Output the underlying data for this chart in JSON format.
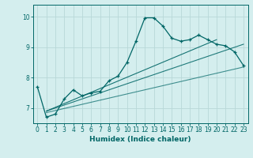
{
  "xlabel": "Humidex (Indice chaleur)",
  "bg_color": "#d4eeee",
  "grid_color": "#c0dede",
  "line_color": "#006666",
  "xlim": [
    -0.5,
    23.5
  ],
  "ylim": [
    6.5,
    10.4
  ],
  "yticks": [
    7,
    8,
    9,
    10
  ],
  "xticks": [
    0,
    1,
    2,
    3,
    4,
    5,
    6,
    7,
    8,
    9,
    10,
    11,
    12,
    13,
    14,
    15,
    16,
    17,
    18,
    19,
    20,
    21,
    22,
    23
  ],
  "main_x": [
    0,
    1,
    2,
    3,
    4,
    5,
    6,
    7,
    8,
    9,
    10,
    11,
    12,
    13,
    14,
    15,
    16,
    17,
    18,
    19,
    20,
    21,
    22,
    23
  ],
  "main_y": [
    7.7,
    6.7,
    6.8,
    7.3,
    7.6,
    7.4,
    7.5,
    7.55,
    7.9,
    8.05,
    8.5,
    9.2,
    9.97,
    9.97,
    9.7,
    9.3,
    9.2,
    9.25,
    9.4,
    9.25,
    9.1,
    9.05,
    8.85,
    8.4
  ],
  "trend1_x": [
    1,
    23
  ],
  "trend1_y": [
    6.9,
    9.1
  ],
  "trend2_x": [
    1,
    23
  ],
  "trend2_y": [
    6.85,
    8.35
  ],
  "trend3_x": [
    1,
    20
  ],
  "trend3_y": [
    6.9,
    9.25
  ]
}
